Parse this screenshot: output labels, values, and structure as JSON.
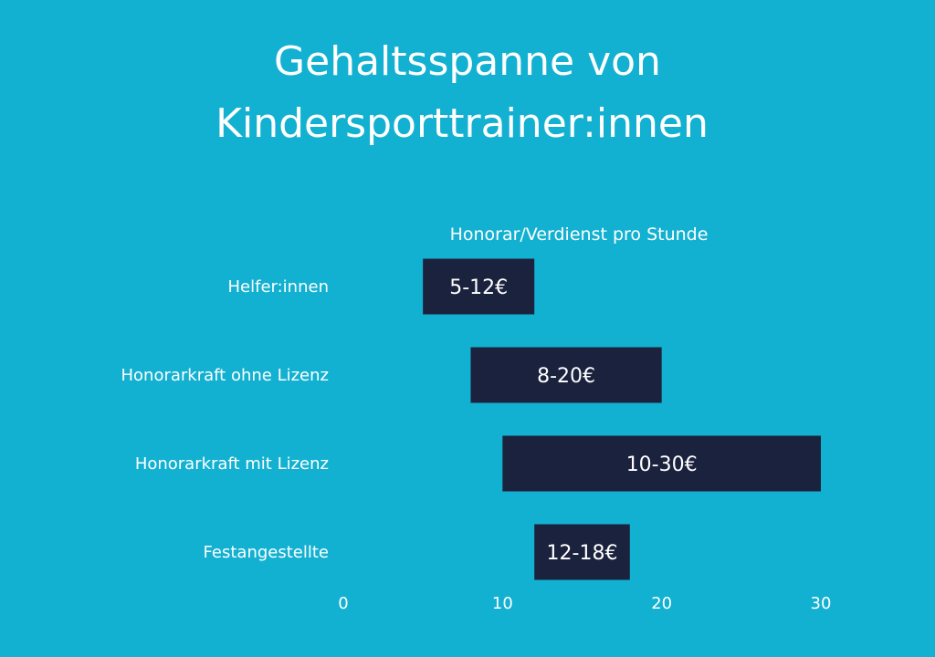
{
  "colors": {
    "background": "#13b1d1",
    "bar": "#1b223d",
    "text": "#ffffff"
  },
  "chart_data": {
    "type": "bar",
    "orientation": "horizontal",
    "bar_mode": "floating-range",
    "title": "Gehaltsspanne von Kindersporttrainer:innen",
    "title_lines": [
      "Gehaltsspanne von",
      "Kindersporttrainer:innen"
    ],
    "subtitle": "Honorar/Verdienst pro Stunde",
    "xlabel": "",
    "ylabel": "",
    "xlim": [
      0,
      30
    ],
    "x_ticks": [
      0,
      10,
      20,
      30
    ],
    "grid": false,
    "legend": "none",
    "categories": [
      "Helfer:innen",
      "Honorarkraft ohne Lizenz",
      "Honorarkraft mit Lizenz",
      "Festangestellte"
    ],
    "ranges": [
      {
        "low": 5,
        "high": 12,
        "label": "5-12€"
      },
      {
        "low": 8,
        "high": 20,
        "label": "8-20€"
      },
      {
        "low": 10,
        "high": 30,
        "label": "10-30€"
      },
      {
        "low": 12,
        "high": 18,
        "label": "12-18€"
      }
    ]
  }
}
